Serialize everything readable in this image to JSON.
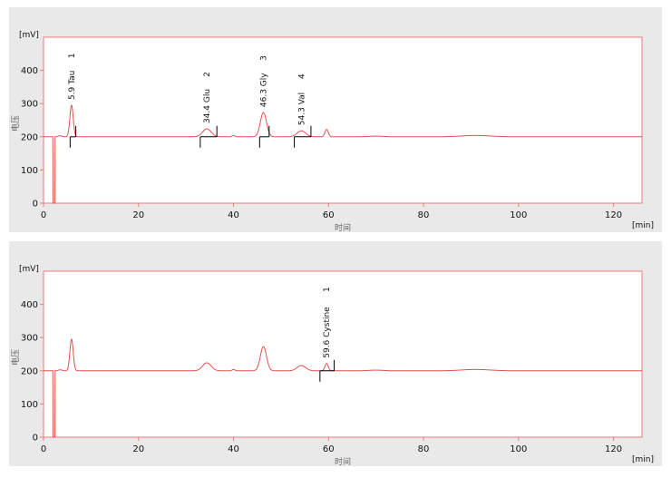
{
  "chart_data": [
    {
      "type": "line",
      "xlabel": "时间",
      "ylabel": "电压",
      "x_unit": "[min]",
      "y_unit": "[mV]",
      "xlim": [
        0,
        126
      ],
      "ylim": [
        0,
        500
      ],
      "x_ticks": [
        "0",
        "20",
        "40",
        "60",
        "80",
        "100",
        "120"
      ],
      "y_ticks": [
        "0",
        "100",
        "200",
        "300",
        "400"
      ],
      "grid": false,
      "series_color": "#e25050",
      "baseline": 200,
      "baseline_dip": {
        "x_start": 2.0,
        "x_end": 2.4,
        "min": 0
      },
      "peaks": [
        {
          "rt": 3.5,
          "height": 3,
          "width": 0.4
        },
        {
          "rt": 5.9,
          "height": 95,
          "width": 0.35
        },
        {
          "rt": 34.4,
          "height": 24,
          "width": 0.9
        },
        {
          "rt": 40.0,
          "height": 4,
          "width": 0.3
        },
        {
          "rt": 46.3,
          "height": 73,
          "width": 0.65
        },
        {
          "rt": 54.3,
          "height": 18,
          "width": 0.9
        },
        {
          "rt": 59.6,
          "height": 22,
          "width": 0.35
        },
        {
          "rt": 70.0,
          "height": 2,
          "width": 1.5
        },
        {
          "rt": 91.0,
          "height": 4,
          "width": 3.0
        }
      ],
      "annotations": [
        {
          "text": "5.9 Tau",
          "index": "1",
          "rt": 5.9,
          "start": 5.6,
          "end": 6.8
        },
        {
          "text": "34.4 Glu",
          "index": "2",
          "rt": 34.4,
          "start": 33.0,
          "end": 36.5
        },
        {
          "text": "46.3 Gly",
          "index": "3",
          "rt": 46.3,
          "start": 45.5,
          "end": 47.5
        },
        {
          "text": "54.3 Val",
          "index": "4",
          "rt": 54.3,
          "start": 52.8,
          "end": 56.3
        }
      ]
    },
    {
      "type": "line",
      "xlabel": "时间",
      "ylabel": "电压",
      "x_unit": "[min]",
      "y_unit": "[mV]",
      "xlim": [
        0,
        126
      ],
      "ylim": [
        0,
        500
      ],
      "x_ticks": [
        "0",
        "20",
        "40",
        "60",
        "80",
        "100",
        "120"
      ],
      "y_ticks": [
        "0",
        "100",
        "200",
        "300",
        "400"
      ],
      "grid": false,
      "series_color": "#e25050",
      "baseline": 200,
      "baseline_dip": {
        "x_start": 2.0,
        "x_end": 2.4,
        "min": 0
      },
      "peaks": [
        {
          "rt": 3.5,
          "height": 3,
          "width": 0.4
        },
        {
          "rt": 5.9,
          "height": 95,
          "width": 0.35
        },
        {
          "rt": 34.4,
          "height": 24,
          "width": 0.9
        },
        {
          "rt": 40.0,
          "height": 4,
          "width": 0.3
        },
        {
          "rt": 46.3,
          "height": 73,
          "width": 0.65
        },
        {
          "rt": 54.3,
          "height": 16,
          "width": 0.9
        },
        {
          "rt": 59.6,
          "height": 22,
          "width": 0.35
        },
        {
          "rt": 70.0,
          "height": 2,
          "width": 1.5
        },
        {
          "rt": 91.0,
          "height": 4,
          "width": 3.0
        }
      ],
      "annotations": [
        {
          "text": "59.6 Cystine",
          "index": "1",
          "rt": 59.6,
          "start": 58.2,
          "end": 61.2
        }
      ]
    }
  ]
}
